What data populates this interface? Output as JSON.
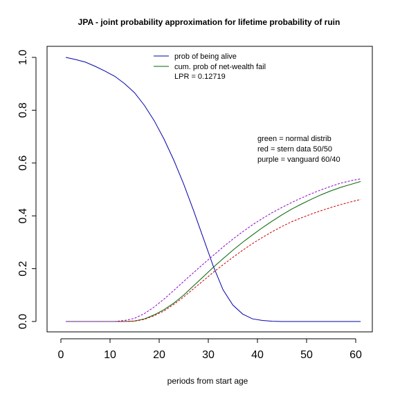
{
  "chart_data": {
    "type": "line",
    "title": "JPA - joint probability approximation for lifetime probability of ruin",
    "xlabel": "periods from start age",
    "ylabel": "",
    "xlim": [
      1,
      61
    ],
    "ylim": [
      0,
      1
    ],
    "x_ticks": [
      "0",
      "10",
      "20",
      "30",
      "40",
      "50",
      "60"
    ],
    "y_ticks": [
      "0.0",
      "0.2",
      "0.4",
      "0.6",
      "0.8",
      "1.0"
    ],
    "x": [
      1,
      3,
      5,
      7,
      9,
      11,
      13,
      15,
      17,
      19,
      21,
      23,
      25,
      27,
      29,
      31,
      33,
      35,
      37,
      39,
      41,
      43,
      45,
      47,
      49,
      51,
      53,
      55,
      57,
      59,
      61
    ],
    "series": [
      {
        "name": "prob of being alive",
        "color": "#0000aa",
        "dash": "solid",
        "values": [
          1.0,
          0.992,
          0.982,
          0.966,
          0.948,
          0.928,
          0.9,
          0.866,
          0.818,
          0.76,
          0.69,
          0.61,
          0.52,
          0.42,
          0.315,
          0.21,
          0.12,
          0.062,
          0.028,
          0.01,
          0.004,
          0.001,
          0.0,
          0.0,
          0.0,
          0.0,
          0.0,
          0.0,
          0.0,
          0.0,
          0.0
        ]
      },
      {
        "name": "cum. prob of net-wealth fail",
        "color": "#006400",
        "dash": "solid",
        "values": [
          0.0,
          0.0,
          0.0,
          0.0,
          0.0,
          0.0,
          0.0,
          0.002,
          0.01,
          0.025,
          0.045,
          0.07,
          0.1,
          0.135,
          0.17,
          0.205,
          0.238,
          0.27,
          0.3,
          0.328,
          0.355,
          0.38,
          0.404,
          0.426,
          0.445,
          0.463,
          0.48,
          0.495,
          0.508,
          0.519,
          0.53
        ]
      },
      {
        "name": "red = stern data 50/50",
        "color": "#cc0000",
        "dash": "dashed",
        "values": [
          0.0,
          0.0,
          0.0,
          0.0,
          0.0,
          0.0,
          0.0,
          0.001,
          0.008,
          0.022,
          0.04,
          0.065,
          0.093,
          0.124,
          0.155,
          0.186,
          0.215,
          0.243,
          0.27,
          0.295,
          0.318,
          0.34,
          0.36,
          0.378,
          0.393,
          0.407,
          0.42,
          0.432,
          0.443,
          0.453,
          0.462
        ]
      },
      {
        "name": "purple = vanguard 60/40",
        "color": "#8800cc",
        "dash": "dashed",
        "values": [
          0.0,
          0.0,
          0.0,
          0.0,
          0.0,
          0.0,
          0.004,
          0.012,
          0.03,
          0.055,
          0.085,
          0.118,
          0.152,
          0.185,
          0.218,
          0.25,
          0.282,
          0.312,
          0.34,
          0.366,
          0.39,
          0.412,
          0.432,
          0.451,
          0.468,
          0.484,
          0.499,
          0.512,
          0.524,
          0.533,
          0.54
        ]
      }
    ],
    "legend": {
      "placement": "top-center",
      "entries": [
        {
          "label": "prob of being alive",
          "color": "#0000aa"
        },
        {
          "label": "cum. prob of net-wealth fail",
          "color": "#006400"
        }
      ],
      "lpr_text": "LPR =  0.12719"
    },
    "annotations": [
      "green = normal distrib",
      "red = stern data 50/50",
      "purple = vanguard 60/40"
    ]
  }
}
